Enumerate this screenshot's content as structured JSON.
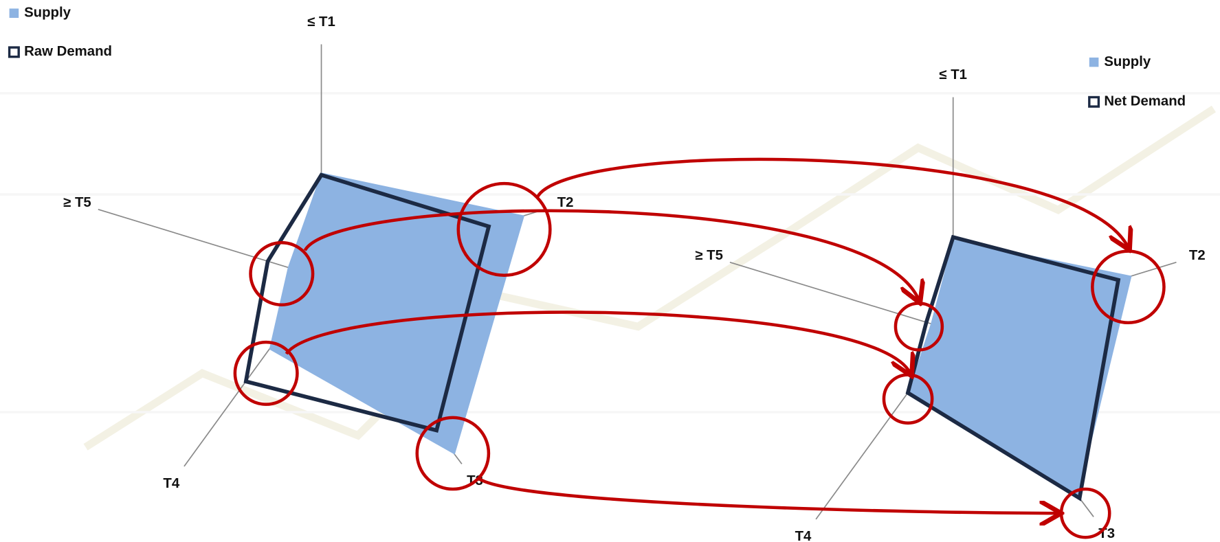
{
  "chart_data": [
    {
      "type": "radar",
      "categories": [
        "≤ T1",
        "T2",
        "T3",
        "T4",
        "≥ T5"
      ],
      "rlim": [
        0,
        100
      ],
      "series": [
        {
          "name": "Supply",
          "color": "#8db3e2",
          "values": [
            45,
            91,
            95,
            38,
            15
          ]
        },
        {
          "name": "Raw Demand",
          "color": "#1c2a44",
          "values": [
            44,
            75,
            82,
            55,
            24
          ]
        }
      ]
    },
    {
      "type": "radar",
      "categories": [
        "≤ T1",
        "T2",
        "T3",
        "T4",
        "≥ T5"
      ],
      "rlim": [
        0,
        100
      ],
      "series": [
        {
          "name": "Supply",
          "color": "#8db3e2",
          "values": [
            39,
            80,
            89,
            33,
            10
          ]
        },
        {
          "name": "Net Demand",
          "color": "#1c2a44",
          "values": [
            40,
            74,
            90,
            33,
            12
          ]
        }
      ]
    }
  ]
}
